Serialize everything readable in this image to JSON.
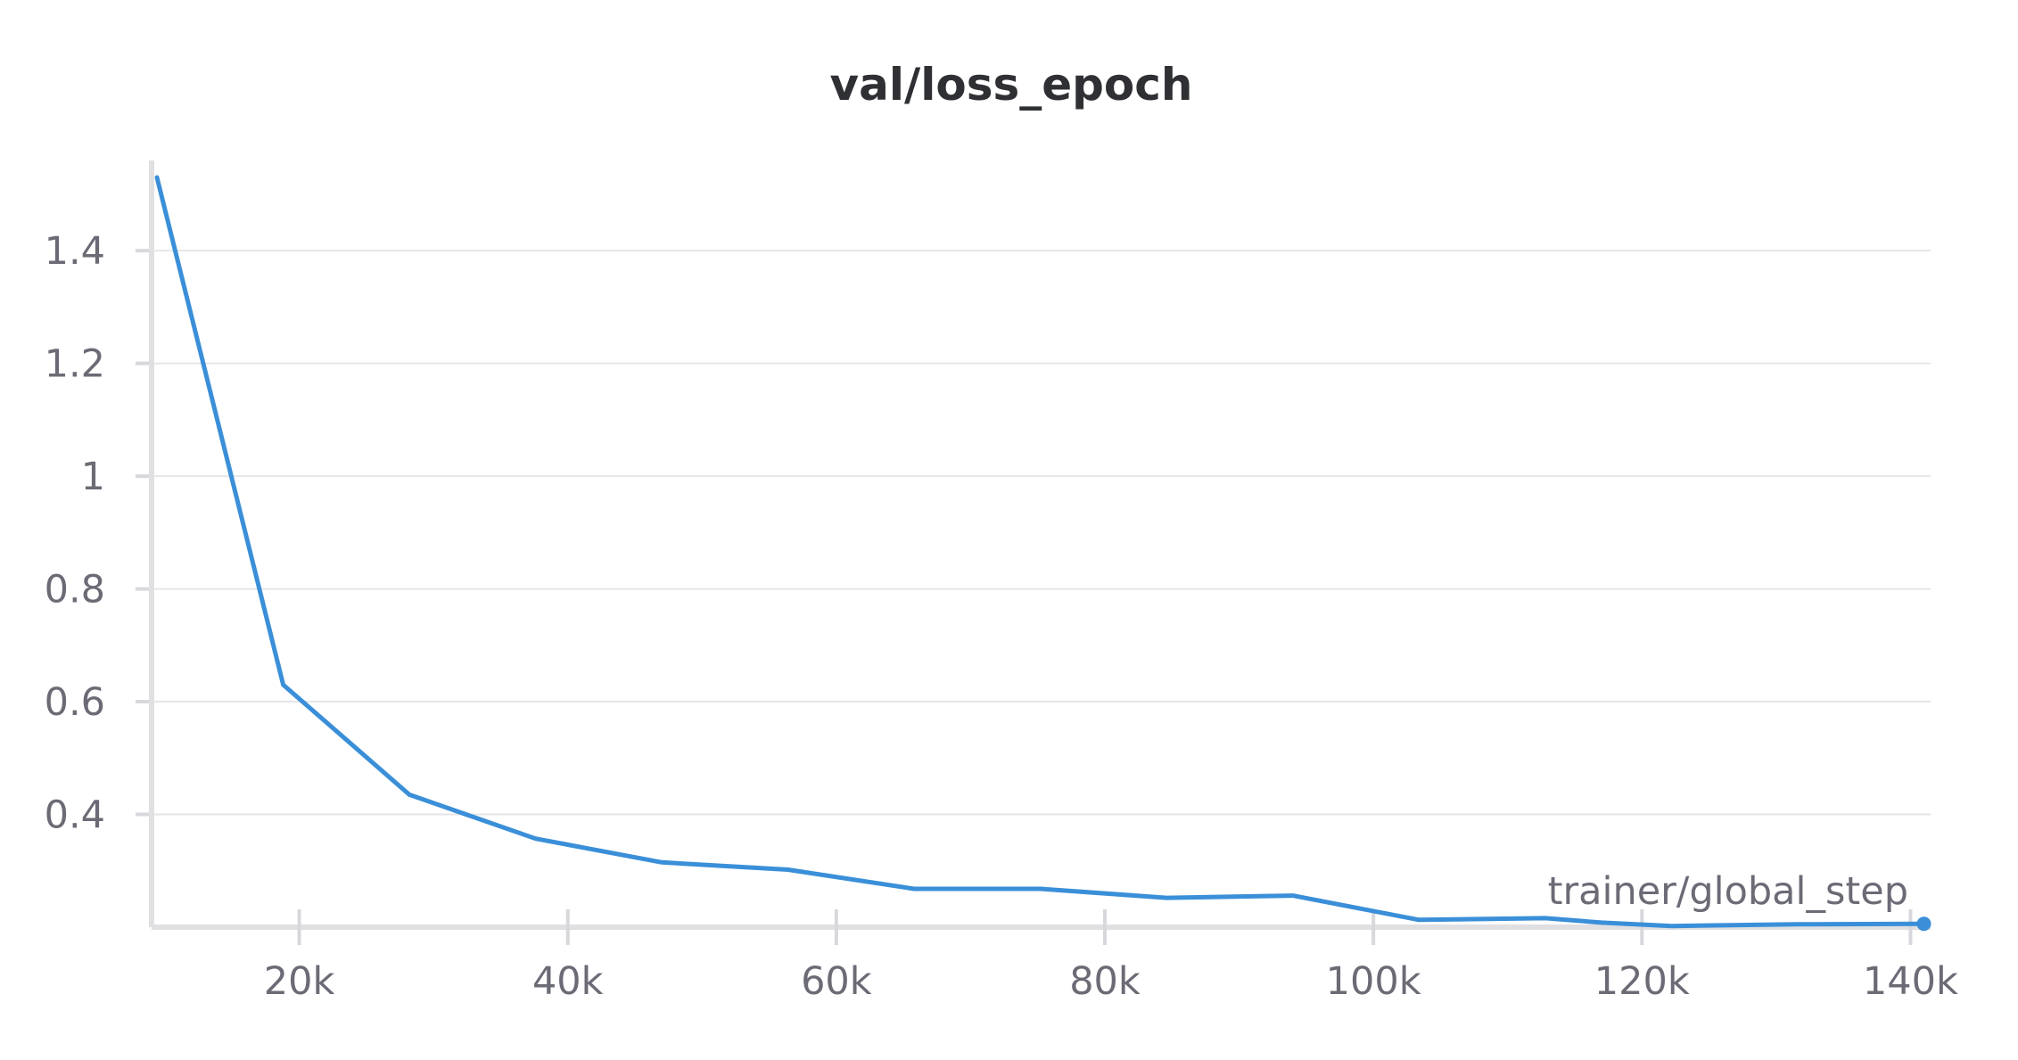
{
  "chart_data": {
    "type": "line",
    "title": "val/loss_epoch",
    "xlabel": "trainer/global_step",
    "ylabel": "",
    "xlim": [
      9000,
      141500
    ],
    "ylim": [
      0.2,
      1.56
    ],
    "xticks": [
      {
        "value": 20000,
        "label": "20k"
      },
      {
        "value": 40000,
        "label": "40k"
      },
      {
        "value": 60000,
        "label": "60k"
      },
      {
        "value": 80000,
        "label": "80k"
      },
      {
        "value": 100000,
        "label": "100k"
      },
      {
        "value": 120000,
        "label": "120k"
      },
      {
        "value": 140000,
        "label": "140k"
      }
    ],
    "yticks": [
      {
        "value": 0.4,
        "label": "0.4"
      },
      {
        "value": 0.6,
        "label": "0.6"
      },
      {
        "value": 0.8,
        "label": "0.8"
      },
      {
        "value": 1.0,
        "label": "1"
      },
      {
        "value": 1.2,
        "label": "1.2"
      },
      {
        "value": 1.4,
        "label": "1.4"
      }
    ],
    "grid": true,
    "color": "#3a8fd8",
    "series": [
      {
        "x": [
          9400,
          18800,
          28200,
          37600,
          47000,
          56400,
          65800,
          75200,
          84600,
          94000,
          103400,
          112800,
          117000,
          122200,
          131600,
          141000
        ],
        "y": [
          1.53,
          0.63,
          0.435,
          0.357,
          0.315,
          0.302,
          0.268,
          0.268,
          0.252,
          0.256,
          0.213,
          0.216,
          0.208,
          0.202,
          0.205,
          0.206
        ]
      }
    ]
  }
}
